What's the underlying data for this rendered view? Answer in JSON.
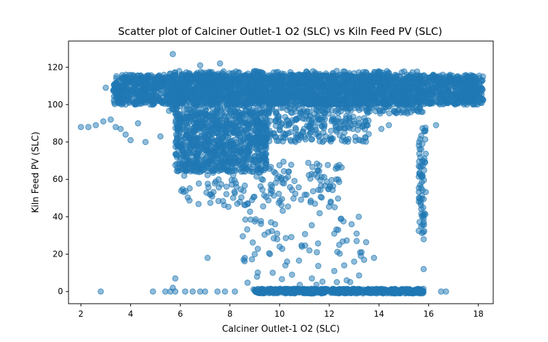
{
  "chart_data": {
    "type": "scatter",
    "title": "Scatter plot of Calciner Outlet-1 O2 (SLC) vs Kiln Feed PV (SLC)",
    "xlabel": "Calciner Outlet-1 O2 (SLC)",
    "ylabel": "Kiln Feed PV (SLC)",
    "xlim": [
      1.5,
      18.6
    ],
    "ylim": [
      -6.5,
      134
    ],
    "xticks": [
      2,
      4,
      6,
      8,
      10,
      12,
      14,
      16,
      18
    ],
    "yticks": [
      0,
      20,
      40,
      60,
      80,
      100,
      120
    ],
    "color": "#1f77b4",
    "alpha": 0.5,
    "grid": false,
    "clusters": [
      {
        "x": [
          3.3,
          18.2
        ],
        "y": [
          100,
          116
        ],
        "n": 2600
      },
      {
        "x": [
          5.5,
          15.8
        ],
        "y": [
          95,
          118
        ],
        "n": 900
      },
      {
        "x": [
          5.8,
          9.5
        ],
        "y": [
          64,
          96
        ],
        "n": 900
      },
      {
        "x": [
          9.0,
          13.6
        ],
        "y": [
          80,
          94
        ],
        "n": 220
      },
      {
        "x": [
          6.0,
          12.5
        ],
        "y": [
          45,
          70
        ],
        "n": 170
      },
      {
        "x": [
          8.5,
          13.6
        ],
        "y": [
          0,
          45
        ],
        "n": 60
      },
      {
        "x": [
          9.0,
          15.8
        ],
        "y": [
          -1,
          1.5
        ],
        "n": 700
      },
      {
        "x": [
          15.6,
          15.9
        ],
        "y": [
          28,
          90
        ],
        "n": 70
      }
    ],
    "points": [
      {
        "x": 2.0,
        "y": 88
      },
      {
        "x": 2.3,
        "y": 88
      },
      {
        "x": 2.6,
        "y": 89
      },
      {
        "x": 2.9,
        "y": 91
      },
      {
        "x": 3.2,
        "y": 92
      },
      {
        "x": 3.4,
        "y": 88
      },
      {
        "x": 3.6,
        "y": 87
      },
      {
        "x": 3.8,
        "y": 84
      },
      {
        "x": 4.0,
        "y": 81
      },
      {
        "x": 4.3,
        "y": 90
      },
      {
        "x": 4.6,
        "y": 80
      },
      {
        "x": 5.2,
        "y": 83
      },
      {
        "x": 3.0,
        "y": 109
      },
      {
        "x": 5.7,
        "y": 127
      },
      {
        "x": 7.6,
        "y": 122
      },
      {
        "x": 6.8,
        "y": 121
      },
      {
        "x": 9.3,
        "y": 117
      },
      {
        "x": 12.3,
        "y": 118
      },
      {
        "x": 13.5,
        "y": 117
      },
      {
        "x": 2.8,
        "y": 0
      },
      {
        "x": 4.9,
        "y": 0
      },
      {
        "x": 5.4,
        "y": 0
      },
      {
        "x": 5.6,
        "y": 0
      },
      {
        "x": 5.8,
        "y": 0
      },
      {
        "x": 6.2,
        "y": 0
      },
      {
        "x": 6.5,
        "y": 0
      },
      {
        "x": 6.8,
        "y": 0
      },
      {
        "x": 7.0,
        "y": 0
      },
      {
        "x": 7.5,
        "y": 0
      },
      {
        "x": 7.8,
        "y": 0
      },
      {
        "x": 8.2,
        "y": 0
      },
      {
        "x": 5.8,
        "y": 7
      },
      {
        "x": 5.7,
        "y": 2
      },
      {
        "x": 7.1,
        "y": 18
      },
      {
        "x": 8.6,
        "y": 18
      },
      {
        "x": 9.0,
        "y": 20
      },
      {
        "x": 9.9,
        "y": 31
      },
      {
        "x": 9.9,
        "y": 28
      },
      {
        "x": 10.0,
        "y": 24
      },
      {
        "x": 10.3,
        "y": 16
      },
      {
        "x": 10.5,
        "y": 9
      },
      {
        "x": 10.9,
        "y": 24
      },
      {
        "x": 11.2,
        "y": 22
      },
      {
        "x": 11.3,
        "y": 7
      },
      {
        "x": 11.5,
        "y": 21
      },
      {
        "x": 12.2,
        "y": 31
      },
      {
        "x": 12.2,
        "y": 11
      },
      {
        "x": 12.4,
        "y": 25
      },
      {
        "x": 12.6,
        "y": 14
      },
      {
        "x": 12.7,
        "y": 6
      },
      {
        "x": 12.9,
        "y": 36
      },
      {
        "x": 13.0,
        "y": 16
      },
      {
        "x": 13.1,
        "y": 27
      },
      {
        "x": 13.3,
        "y": 21
      },
      {
        "x": 13.4,
        "y": 17
      },
      {
        "x": 13.8,
        "y": 18
      },
      {
        "x": 13.1,
        "y": 31
      },
      {
        "x": 14.4,
        "y": 89
      },
      {
        "x": 16.3,
        "y": 89
      },
      {
        "x": 14.1,
        "y": 87
      },
      {
        "x": 15.2,
        "y": 0
      },
      {
        "x": 16.5,
        "y": 0
      },
      {
        "x": 16.7,
        "y": 0
      },
      {
        "x": 15.8,
        "y": 12
      },
      {
        "x": 15.8,
        "y": 28
      },
      {
        "x": 15.8,
        "y": 37
      }
    ]
  }
}
